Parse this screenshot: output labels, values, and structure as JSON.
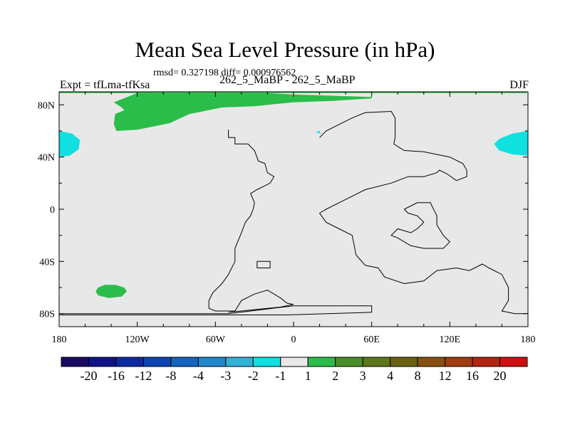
{
  "chart_data": {
    "type": "heatmap",
    "title": "Mean Sea Level Pressure (in hPa)",
    "stats": "rmsd= 0.327198 diff= 0.000976562",
    "left_label": "Expt = tfLma-tfKsa",
    "center_label": "262_5_MaBP - 262_5_MaBP",
    "right_label": "DJF",
    "xlim": [
      -180,
      180
    ],
    "ylim": [
      -90,
      90
    ],
    "x_ticks": [
      {
        "value": -180,
        "label": "180"
      },
      {
        "value": -120,
        "label": "120W"
      },
      {
        "value": -60,
        "label": "60W"
      },
      {
        "value": 0,
        "label": "0"
      },
      {
        "value": 60,
        "label": "60E"
      },
      {
        "value": 120,
        "label": "120E"
      },
      {
        "value": 180,
        "label": "180"
      }
    ],
    "y_ticks": [
      {
        "value": 80,
        "label": "80N"
      },
      {
        "value": 40,
        "label": "40N"
      },
      {
        "value": 0,
        "label": "0"
      },
      {
        "value": -40,
        "label": "40S"
      },
      {
        "value": -80,
        "label": "80S"
      }
    ],
    "background_bin": "-1 to 1",
    "colorbar": {
      "colors": [
        "#1b0a62",
        "#111288",
        "#0d2aa0",
        "#0d45b4",
        "#1464c0",
        "#1f88cc",
        "#33b2d8",
        "#10e0e0",
        "#e8e8e8",
        "#2abd4a",
        "#4a8e2a",
        "#5c7618",
        "#6a6210",
        "#875010",
        "#a03c10",
        "#b42410",
        "#d01010"
      ],
      "labels": [
        "-20",
        "-16",
        "-12",
        "-8",
        "-4",
        "-3",
        "-2",
        "-1",
        "1",
        "2",
        "3",
        "4",
        "8",
        "12",
        "16",
        "20"
      ]
    },
    "regions": [
      {
        "name": "arctic-green-band",
        "fill": "#2abd4a",
        "bin": "1 to 2",
        "points": [
          [
            -180,
            89
          ],
          [
            -90,
            89
          ],
          [
            -30,
            89
          ],
          [
            0,
            89
          ],
          [
            60,
            89
          ],
          [
            179,
            89
          ],
          [
            179,
            90
          ],
          [
            -180,
            90
          ]
        ]
      },
      {
        "name": "north-pacific-green",
        "fill": "#2abd4a",
        "bin": "1 to 2",
        "points": [
          [
            -120,
            89
          ],
          [
            -60,
            89
          ],
          [
            -20,
            89
          ],
          [
            0,
            88
          ],
          [
            30,
            87
          ],
          [
            60,
            86
          ],
          [
            60,
            85
          ],
          [
            30,
            83
          ],
          [
            0,
            82
          ],
          [
            -30,
            79
          ],
          [
            -55,
            78
          ],
          [
            -80,
            73
          ],
          [
            -95,
            66
          ],
          [
            -120,
            61
          ],
          [
            -136,
            60
          ],
          [
            -138,
            65
          ],
          [
            -137,
            73
          ],
          [
            -130,
            76
          ],
          [
            -132,
            78
          ],
          [
            -138,
            82
          ]
        ]
      },
      {
        "name": "cyan-patch-west",
        "fill": "#10e0e0",
        "bin": "-2 to -1",
        "points": [
          [
            -180,
            60
          ],
          [
            -170,
            58
          ],
          [
            -164,
            53
          ],
          [
            -165,
            46
          ],
          [
            -172,
            41
          ],
          [
            -180,
            40
          ]
        ]
      },
      {
        "name": "cyan-patch-east",
        "fill": "#10e0e0",
        "bin": "-2 to -1",
        "points": [
          [
            180,
            60
          ],
          [
            168,
            58
          ],
          [
            158,
            54
          ],
          [
            154,
            50
          ],
          [
            158,
            45
          ],
          [
            168,
            42
          ],
          [
            180,
            41
          ]
        ]
      },
      {
        "name": "cyan-speck",
        "fill": "#10e0e0",
        "bin": "-2 to -1",
        "points": [
          [
            17,
            59
          ],
          [
            20,
            60
          ],
          [
            21,
            58
          ]
        ]
      },
      {
        "name": "south-pacific-green",
        "fill": "#2abd4a",
        "bin": "1 to 2",
        "points": [
          [
            -150,
            -60
          ],
          [
            -145,
            -58
          ],
          [
            -137,
            -58
          ],
          [
            -130,
            -60
          ],
          [
            -128,
            -63
          ],
          [
            -132,
            -67
          ],
          [
            -142,
            -68
          ],
          [
            -150,
            -66
          ],
          [
            -152,
            -63
          ]
        ]
      }
    ],
    "coastlines": [
      {
        "name": "laurentia-west",
        "points": [
          [
            -50,
            61
          ],
          [
            -50,
            55
          ],
          [
            -45,
            55
          ],
          [
            -45,
            50
          ],
          [
            -35,
            50
          ],
          [
            -30,
            45
          ],
          [
            -27,
            37
          ],
          [
            -22,
            35
          ],
          [
            -20,
            28
          ],
          [
            -15,
            25
          ],
          [
            -18,
            20
          ],
          [
            -28,
            15
          ],
          [
            -33,
            12
          ],
          [
            -30,
            5
          ],
          [
            -31,
            0
          ],
          [
            -33,
            -5
          ],
          [
            -37,
            -10
          ],
          [
            -40,
            -18
          ],
          [
            -45,
            -30
          ],
          [
            -45,
            -40
          ],
          [
            -50,
            -50
          ],
          [
            -55,
            -57
          ],
          [
            -62,
            -64
          ],
          [
            -65,
            -70
          ],
          [
            -65,
            -76
          ],
          [
            -60,
            -78
          ],
          [
            -45,
            -78
          ],
          [
            -40,
            -70
          ],
          [
            -30,
            -65
          ],
          [
            -20,
            -62
          ],
          [
            -15,
            -65
          ],
          [
            -10,
            -68
          ],
          [
            -5,
            -72
          ],
          [
            0,
            -73
          ],
          [
            -10,
            -75
          ],
          [
            -20,
            -76
          ],
          [
            -40,
            -78
          ],
          [
            -50,
            -79
          ]
        ]
      },
      {
        "name": "small-island",
        "points": [
          [
            -28,
            -40
          ],
          [
            -18,
            -40
          ],
          [
            -18,
            -45
          ],
          [
            -28,
            -45
          ],
          [
            -28,
            -40
          ]
        ]
      },
      {
        "name": "north-outline",
        "points": [
          [
            20,
            55
          ],
          [
            25,
            60
          ],
          [
            35,
            65
          ],
          [
            45,
            70
          ],
          [
            55,
            74
          ],
          [
            75,
            75
          ],
          [
            78,
            70
          ],
          [
            78,
            55
          ],
          [
            77,
            50
          ],
          [
            85,
            45
          ],
          [
            100,
            44
          ],
          [
            120,
            40
          ],
          [
            130,
            35
          ],
          [
            133,
            30
          ],
          [
            133,
            25
          ],
          [
            125,
            22
          ],
          [
            118,
            27
          ],
          [
            112,
            30
          ],
          [
            110,
            28
          ],
          [
            100,
            25
          ],
          [
            88,
            25
          ],
          [
            75,
            20
          ],
          [
            55,
            15
          ],
          [
            45,
            10
          ],
          [
            35,
            5
          ],
          [
            25,
            0
          ],
          [
            20,
            -3
          ],
          [
            25,
            -10
          ],
          [
            35,
            -15
          ],
          [
            45,
            -20
          ],
          [
            48,
            -35
          ],
          [
            48,
            -35
          ]
        ]
      },
      {
        "name": "inner-ring",
        "points": [
          [
            85,
            0
          ],
          [
            95,
            5
          ],
          [
            105,
            5
          ],
          [
            110,
            -5
          ],
          [
            110,
            -12
          ],
          [
            115,
            -20
          ],
          [
            120,
            -25
          ],
          [
            115,
            -30
          ],
          [
            100,
            -30
          ],
          [
            90,
            -28
          ],
          [
            80,
            -22
          ],
          [
            75,
            -20
          ],
          [
            80,
            -15
          ],
          [
            90,
            -18
          ],
          [
            95,
            -15
          ],
          [
            100,
            -10
          ],
          [
            95,
            -5
          ],
          [
            88,
            -3
          ],
          [
            85,
            0
          ]
        ]
      },
      {
        "name": "south-margin",
        "points": [
          [
            48,
            -35
          ],
          [
            55,
            -43
          ],
          [
            65,
            -45
          ],
          [
            70,
            -52
          ],
          [
            85,
            -57
          ],
          [
            100,
            -55
          ],
          [
            110,
            -47
          ],
          [
            125,
            -45
          ],
          [
            135,
            -47
          ],
          [
            145,
            -42
          ],
          [
            150,
            -45
          ],
          [
            160,
            -50
          ],
          [
            165,
            -60
          ],
          [
            165,
            -70
          ],
          [
            160,
            -78
          ],
          [
            170,
            -80
          ],
          [
            180,
            -80
          ]
        ]
      },
      {
        "name": "south-pole-line",
        "points": [
          [
            -180,
            -81
          ],
          [
            -5,
            -81
          ],
          [
            60,
            -79
          ],
          [
            60,
            -74
          ],
          [
            0,
            -74
          ],
          [
            -50,
            -80
          ],
          [
            -180,
            -80
          ]
        ]
      }
    ]
  }
}
